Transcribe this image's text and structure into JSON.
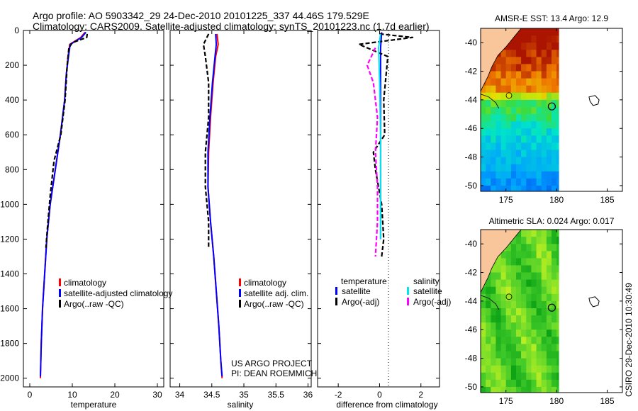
{
  "title_line1": "Argo profile: AO 5903342_29 24-Dec-2010 20101225_337 44.46S 179.529E",
  "title_line2": "Climatology: CARS2009. Satellite-adjusted climatology: synTS_20101223.nc (1.7d earlier)",
  "side_label": "CSIRO 29-Dec-2010 10:30:49",
  "colors": {
    "climatology": "#ff0000",
    "satellite": "#0000ff",
    "argo": "#000000",
    "satellite_salinity": "#00e5ee",
    "argo_adj_salinity": "#ff00ff",
    "land": "#f9c59a"
  },
  "chart_data": [
    {
      "type": "line",
      "name": "temperature-profile",
      "xlabel": "temperature",
      "ylabel": "",
      "xlim": [
        -1.5,
        31.5
      ],
      "ylim": [
        2050,
        0
      ],
      "x_ticks": [
        0,
        10,
        20,
        30
      ],
      "x_tick_labels": [
        "0",
        "10",
        "20",
        "30"
      ],
      "y_ticks": [
        0,
        200,
        400,
        600,
        800,
        1000,
        1200,
        1400,
        1600,
        1800,
        2000
      ],
      "y_tick_labels": [
        "0",
        "200",
        "400",
        "600",
        "800",
        "1000",
        "1200",
        "1400",
        "1600",
        "1800",
        "2000"
      ],
      "legend": [
        "climatology",
        "satellite-adjusted climatology",
        "Argo(..raw -QC)"
      ],
      "series": [
        {
          "name": "climatology",
          "style": "solid",
          "color": "#ff0000",
          "points": [
            [
              13.0,
              10
            ],
            [
              12.0,
              40
            ],
            [
              9.4,
              80
            ],
            [
              9.0,
              150
            ],
            [
              8.6,
              250
            ],
            [
              8.2,
              400
            ],
            [
              7.2,
              600
            ],
            [
              6.0,
              800
            ],
            [
              4.8,
              1000
            ],
            [
              4.0,
              1200
            ],
            [
              3.5,
              1400
            ],
            [
              3.0,
              1600
            ],
            [
              2.7,
              1800
            ],
            [
              2.5,
              2000
            ]
          ]
        },
        {
          "name": "satellite-adjusted climatology",
          "style": "solid",
          "color": "#0000ff",
          "points": [
            [
              13.2,
              10
            ],
            [
              12.2,
              40
            ],
            [
              9.5,
              80
            ],
            [
              9.1,
              150
            ],
            [
              8.6,
              250
            ],
            [
              8.2,
              400
            ],
            [
              7.2,
              600
            ],
            [
              6.0,
              800
            ],
            [
              4.8,
              1000
            ],
            [
              4.0,
              1200
            ],
            [
              3.5,
              1400
            ],
            [
              3.0,
              1600
            ],
            [
              2.7,
              1800
            ],
            [
              2.5,
              1990
            ]
          ]
        },
        {
          "name": "Argo(..raw -QC)",
          "style": "dashed",
          "color": "#000000",
          "points": [
            [
              13.5,
              20
            ],
            [
              13.4,
              40
            ],
            [
              10.0,
              70
            ],
            [
              9.2,
              100
            ],
            [
              8.8,
              200
            ],
            [
              8.3,
              400
            ],
            [
              7.3,
              600
            ],
            [
              5.7,
              750
            ],
            [
              4.8,
              950
            ],
            [
              4.1,
              1150
            ],
            [
              3.8,
              1250
            ]
          ]
        }
      ]
    },
    {
      "type": "line",
      "name": "salinity-profile",
      "xlabel": "salinity",
      "xlim": [
        33.85,
        36.05
      ],
      "ylim": [
        2050,
        0
      ],
      "x_ticks": [
        34,
        34.5,
        35,
        35.5,
        36
      ],
      "x_tick_labels": [
        "34",
        "34.5",
        "35",
        "35.5",
        "36"
      ],
      "legend": [
        "climatology",
        "satellite adj. clim.",
        "Argo(..raw -QC)"
      ],
      "annotation_lines": [
        "US ARGO PROJECT",
        "PI: DEAN ROEMMICH"
      ],
      "series": [
        {
          "name": "climatology",
          "style": "solid",
          "color": "#ff0000",
          "points": [
            [
              34.58,
              20
            ],
            [
              34.6,
              80
            ],
            [
              34.56,
              150
            ],
            [
              34.52,
              300
            ],
            [
              34.48,
              500
            ],
            [
              34.45,
              700
            ],
            [
              34.44,
              900
            ],
            [
              34.48,
              1100
            ],
            [
              34.53,
              1300
            ],
            [
              34.57,
              1500
            ],
            [
              34.61,
              1700
            ],
            [
              34.64,
              1900
            ],
            [
              34.66,
              2000
            ]
          ]
        },
        {
          "name": "satellite adj. clim.",
          "style": "solid",
          "color": "#0000ff",
          "points": [
            [
              34.56,
              20
            ],
            [
              34.57,
              80
            ],
            [
              34.55,
              150
            ],
            [
              34.51,
              300
            ],
            [
              34.47,
              500
            ],
            [
              34.44,
              700
            ],
            [
              34.44,
              900
            ],
            [
              34.48,
              1100
            ],
            [
              34.53,
              1300
            ],
            [
              34.57,
              1500
            ],
            [
              34.61,
              1700
            ],
            [
              34.64,
              1900
            ],
            [
              34.66,
              1990
            ]
          ]
        },
        {
          "name": "Argo(..raw -QC)",
          "style": "dashed",
          "color": "#000000",
          "points": [
            [
              34.45,
              20
            ],
            [
              34.37,
              80
            ],
            [
              34.4,
              150
            ],
            [
              34.45,
              300
            ],
            [
              34.45,
              500
            ],
            [
              34.4,
              700
            ],
            [
              34.4,
              900
            ],
            [
              34.45,
              1100
            ],
            [
              34.45,
              1250
            ]
          ]
        }
      ]
    },
    {
      "type": "line",
      "name": "difference-profile",
      "xlabel": "difference from climatology",
      "xlim": [
        -3,
        2.9
      ],
      "ylim": [
        2050,
        0
      ],
      "x_ticks": [
        -2,
        0,
        2
      ],
      "x_tick_labels": [
        "-2",
        "0",
        "2"
      ],
      "legend_groups": [
        {
          "heading": "temperature",
          "items": [
            "satellite",
            "Argo(-adj)"
          ]
        },
        {
          "heading": "salinity",
          "items": [
            "satellite",
            "Argo(-adj)"
          ]
        }
      ],
      "series": [
        {
          "name": "temperature satellite",
          "style": "solid",
          "color": "#0000ff",
          "points": [
            [
              0.1,
              10
            ],
            [
              0.05,
              100
            ],
            [
              0.05,
              300
            ],
            [
              0.05,
              600
            ],
            [
              0.05,
              900
            ],
            [
              0.05,
              1200
            ]
          ]
        },
        {
          "name": "temperature Argo(-adj)",
          "style": "dashed",
          "color": "#000000",
          "points": [
            [
              0.0,
              20
            ],
            [
              1.6,
              40
            ],
            [
              -1.0,
              80
            ],
            [
              0.4,
              150
            ],
            [
              0.2,
              400
            ],
            [
              0.25,
              600
            ],
            [
              -0.3,
              700
            ],
            [
              -0.2,
              800
            ],
            [
              0.1,
              1000
            ],
            [
              0.2,
              1200
            ],
            [
              0.1,
              1300
            ]
          ]
        },
        {
          "name": "salinity satellite",
          "style": "solid",
          "color": "#00e5ee",
          "points": [
            [
              0.05,
              20
            ],
            [
              -0.05,
              100
            ],
            [
              0.0,
              300
            ],
            [
              0.05,
              600
            ],
            [
              0.05,
              900
            ],
            [
              0.05,
              1200
            ]
          ]
        },
        {
          "name": "salinity Argo(-adj)",
          "style": "dashed",
          "color": "#ff00ff",
          "points": [
            [
              -0.2,
              100
            ],
            [
              -0.6,
              200
            ],
            [
              -0.3,
              300
            ],
            [
              -0.1,
              500
            ],
            [
              -0.2,
              700
            ],
            [
              -0.1,
              900
            ],
            [
              -0.1,
              1100
            ],
            [
              -0.2,
              1300
            ]
          ]
        }
      ]
    },
    {
      "type": "heatmap",
      "name": "sst-map",
      "title": "AMSR-E SST: 13.4 Argo: 12.9",
      "xlim": [
        172.5,
        186.5
      ],
      "ylim": [
        -50.4,
        -39.0
      ],
      "x_ticks": [
        175,
        180,
        185
      ],
      "x_tick_labels": [
        "175",
        "180",
        "185"
      ],
      "y_ticks": [
        -40,
        -42,
        -44,
        -46,
        -48,
        -50
      ],
      "y_tick_labels": [
        "-40",
        "-42",
        "-44",
        "-46",
        "-48",
        "-50"
      ],
      "data_lon_range": [
        172.5,
        180.2
      ],
      "argo_position": [
        179.529,
        -44.46
      ]
    },
    {
      "type": "heatmap",
      "name": "sla-map",
      "title": "Altimetric SLA: 0.024 Argo: 0.017",
      "xlim": [
        172.5,
        186.5
      ],
      "ylim": [
        -50.4,
        -39.0
      ],
      "x_ticks": [
        175,
        180,
        185
      ],
      "x_tick_labels": [
        "175",
        "180",
        "185"
      ],
      "y_ticks": [
        -40,
        -42,
        -44,
        -46,
        -48,
        -50
      ],
      "y_tick_labels": [
        "-40",
        "-42",
        "-44",
        "-46",
        "-48",
        "-50"
      ],
      "data_lon_range": [
        172.5,
        180.2
      ],
      "argo_position": [
        179.529,
        -44.46
      ]
    }
  ]
}
